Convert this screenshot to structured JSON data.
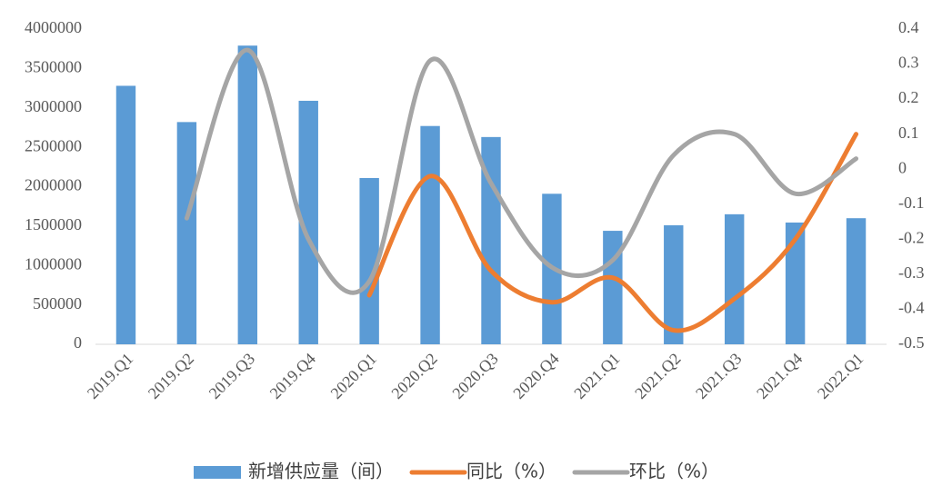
{
  "chart_data": {
    "type": "bar",
    "categories": [
      "2019.Q1",
      "2019.Q2",
      "2019.Q3",
      "2019.Q4",
      "2020.Q1",
      "2020.Q2",
      "2020.Q3",
      "2020.Q4",
      "2021.Q1",
      "2021.Q2",
      "2021.Q3",
      "2021.Q4",
      "2022.Q1"
    ],
    "series": [
      {
        "name": "新增供应量（间）",
        "type": "bar",
        "color": "#5b9bd5",
        "values": [
          3280000,
          2820000,
          3790000,
          3090000,
          2110000,
          2770000,
          2630000,
          1910000,
          1440000,
          1510000,
          1650000,
          1545000,
          1600000
        ]
      },
      {
        "name": "同比（%）",
        "type": "line",
        "axis": "y2",
        "color": "#ed7d31",
        "values": [
          null,
          null,
          null,
          null,
          -0.36,
          -0.02,
          -0.29,
          -0.38,
          -0.31,
          -0.46,
          -0.37,
          -0.2,
          0.1
        ]
      },
      {
        "name": "环比（%）",
        "type": "line",
        "axis": "y2",
        "color": "#a5a5a5",
        "values": [
          null,
          -0.14,
          0.34,
          -0.2,
          -0.32,
          0.31,
          -0.04,
          -0.28,
          -0.26,
          0.04,
          0.1,
          -0.07,
          0.03
        ]
      }
    ],
    "ylim": [
      0,
      4000000
    ],
    "yticks": [
      0,
      500000,
      1000000,
      1500000,
      2000000,
      2500000,
      3000000,
      3500000,
      4000000
    ],
    "y2lim": [
      -0.5,
      0.4
    ],
    "y2ticks": [
      -0.5,
      -0.4,
      -0.3,
      -0.2,
      -0.1,
      0,
      0.1,
      0.2,
      0.3,
      0.4
    ],
    "legend": "bottom"
  }
}
